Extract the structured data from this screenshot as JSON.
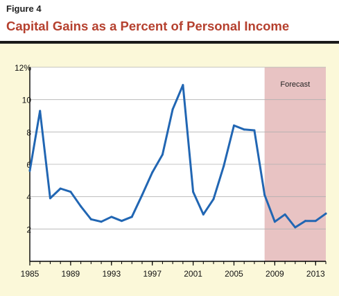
{
  "figure": {
    "label": "Figure 4",
    "title": "Capital Gains as a Percent of Personal Income"
  },
  "colors": {
    "title": "#b5402e",
    "panel_background": "#fbf8d9",
    "line": "#2166b3",
    "forecast_shade": "#e8c3c3",
    "gridline": "#b0b0b0"
  },
  "chart_data": {
    "type": "line",
    "title": "Capital Gains as a Percent of Personal Income",
    "xlabel": "",
    "ylabel": "",
    "xlim": [
      1985,
      2014
    ],
    "ylim": [
      0,
      12
    ],
    "x_ticks": [
      1985,
      1989,
      1993,
      1997,
      2001,
      2005,
      2009,
      2013
    ],
    "y_ticks": [
      2,
      4,
      6,
      8,
      10,
      12
    ],
    "y_tick_labels": [
      "2",
      "4",
      "6",
      "8",
      "10",
      "12%"
    ],
    "grid": true,
    "forecast_region": {
      "label": "Forecast",
      "x_start": 2008,
      "x_end": 2014
    },
    "series": [
      {
        "x": [
          1985,
          1986,
          1987,
          1988,
          1989,
          1990,
          1991,
          1992,
          1993,
          1994,
          1995,
          1996,
          1997,
          1998,
          1999,
          2000,
          2001,
          2002,
          2003,
          2004,
          2005,
          2006,
          2007,
          2008,
          2009,
          2010,
          2011,
          2012,
          2013,
          2014
        ],
        "values": [
          5.6,
          9.3,
          3.9,
          4.5,
          4.3,
          3.4,
          2.6,
          2.45,
          2.75,
          2.5,
          2.75,
          4.1,
          5.5,
          6.6,
          9.4,
          10.9,
          4.3,
          2.9,
          3.85,
          5.9,
          8.4,
          8.15,
          8.1,
          4.1,
          2.45,
          2.9,
          2.1,
          2.5,
          2.5,
          2.95
        ]
      }
    ]
  }
}
